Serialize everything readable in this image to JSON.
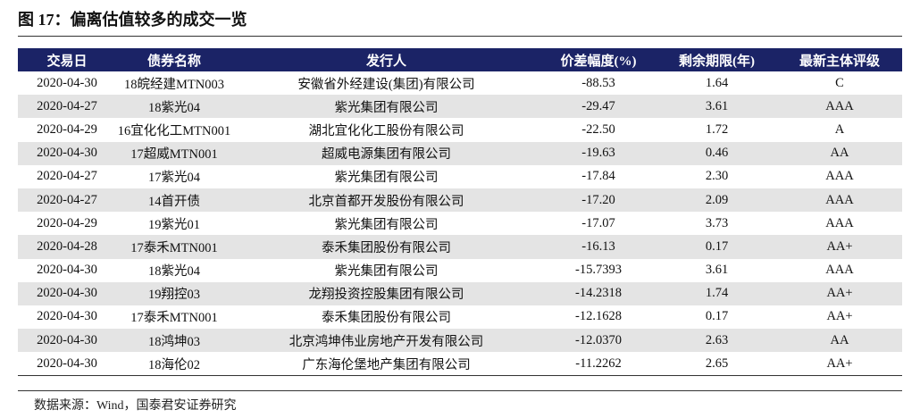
{
  "title": "图 17：偏离估值较多的成交一览",
  "table": {
    "header": [
      "交易日",
      "债券名称",
      "发行人",
      "价差幅度(%)",
      "剩余期限(年)",
      "最新主体评级"
    ],
    "rows": [
      [
        "2020-04-30",
        "18皖经建MTN003",
        "安徽省外经建设(集团)有限公司",
        "-88.53",
        "1.64",
        "C"
      ],
      [
        "2020-04-27",
        "18紫光04",
        "紫光集团有限公司",
        "-29.47",
        "3.61",
        "AAA"
      ],
      [
        "2020-04-29",
        "16宜化化工MTN001",
        "湖北宜化化工股份有限公司",
        "-22.50",
        "1.72",
        "A"
      ],
      [
        "2020-04-30",
        "17超威MTN001",
        "超威电源集团有限公司",
        "-19.63",
        "0.46",
        "AA"
      ],
      [
        "2020-04-27",
        "17紫光04",
        "紫光集团有限公司",
        "-17.84",
        "2.30",
        "AAA"
      ],
      [
        "2020-04-27",
        "14首开债",
        "北京首都开发股份有限公司",
        "-17.20",
        "2.09",
        "AAA"
      ],
      [
        "2020-04-29",
        "19紫光01",
        "紫光集团有限公司",
        "-17.07",
        "3.73",
        "AAA"
      ],
      [
        "2020-04-28",
        "17泰禾MTN001",
        "泰禾集团股份有限公司",
        "-16.13",
        "0.17",
        "AA+"
      ],
      [
        "2020-04-30",
        "18紫光04",
        "紫光集团有限公司",
        "-15.7393",
        "3.61",
        "AAA"
      ],
      [
        "2020-04-30",
        "19翔控03",
        "龙翔投资控股集团有限公司",
        "-14.2318",
        "1.74",
        "AA+"
      ],
      [
        "2020-04-30",
        "17泰禾MTN001",
        "泰禾集团股份有限公司",
        "-12.1628",
        "0.17",
        "AA+"
      ],
      [
        "2020-04-30",
        "18鸿坤03",
        "北京鸿坤伟业房地产开发有限公司",
        "-12.0370",
        "2.63",
        "AA"
      ],
      [
        "2020-04-30",
        "18海伦02",
        "广东海伦堡地产集团有限公司",
        "-11.2262",
        "2.65",
        "AA+"
      ]
    ]
  },
  "source": "数据来源：Wind，国泰君安证券研究"
}
